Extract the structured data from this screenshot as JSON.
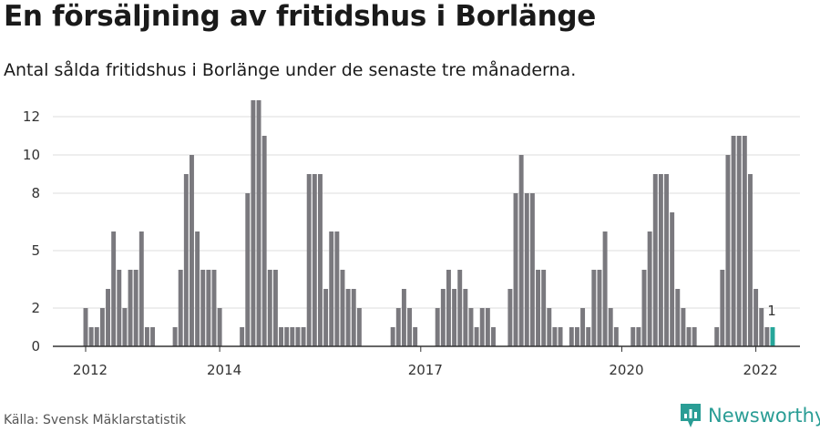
{
  "title": "En försäljning av fritidshus i Borlänge",
  "subtitle": "Antal sålda fritidshus i Borlänge under de senaste tre månaderna.",
  "source": "Källa: Svensk Mäklarstatistik",
  "brand": {
    "name": "Newsworthy",
    "icon": "newsworthy-logo-icon",
    "color": "#2a9d95"
  },
  "colors": {
    "bar": "#7a797e",
    "highlight": "#26a69a",
    "grid": "#dddddd",
    "axis": "#333333"
  },
  "chart_data": {
    "type": "bar",
    "ylabel": "",
    "xlabel": "",
    "ylim": [
      0,
      12
    ],
    "y_ticks": [
      "0",
      "2",
      "5",
      "8",
      "10",
      "12"
    ],
    "x_ticks": [
      {
        "label": "2012",
        "month_index": 0
      },
      {
        "label": "2014",
        "month_index": 24
      },
      {
        "label": "2017",
        "month_index": 60
      },
      {
        "label": "2020",
        "month_index": 96
      },
      {
        "label": "2022",
        "month_index": 120
      }
    ],
    "first_month_index": 0,
    "values": [
      2,
      1,
      1,
      2,
      3,
      6,
      4,
      2,
      4,
      4,
      6,
      1,
      1,
      0,
      0,
      0,
      1,
      4,
      9,
      10,
      6,
      4,
      4,
      4,
      2,
      0,
      0,
      0,
      1,
      8,
      13,
      13,
      11,
      4,
      4,
      1,
      1,
      1,
      1,
      1,
      9,
      9,
      9,
      3,
      6,
      6,
      4,
      3,
      3,
      2,
      0,
      0,
      0,
      0,
      0,
      1,
      2,
      3,
      2,
      1,
      0,
      0,
      0,
      2,
      3,
      4,
      3,
      4,
      3,
      2,
      1,
      2,
      2,
      1,
      0,
      0,
      3,
      8,
      10,
      8,
      8,
      4,
      4,
      2,
      1,
      1,
      0,
      1,
      1,
      2,
      1,
      4,
      4,
      6,
      2,
      1,
      0,
      0,
      1,
      1,
      4,
      6,
      9,
      9,
      9,
      7,
      3,
      2,
      1,
      1,
      0,
      0,
      0,
      1,
      4,
      10,
      11,
      11,
      11,
      9,
      3,
      2,
      1,
      1
    ],
    "highlight_last": true,
    "last_value_label": "1"
  }
}
